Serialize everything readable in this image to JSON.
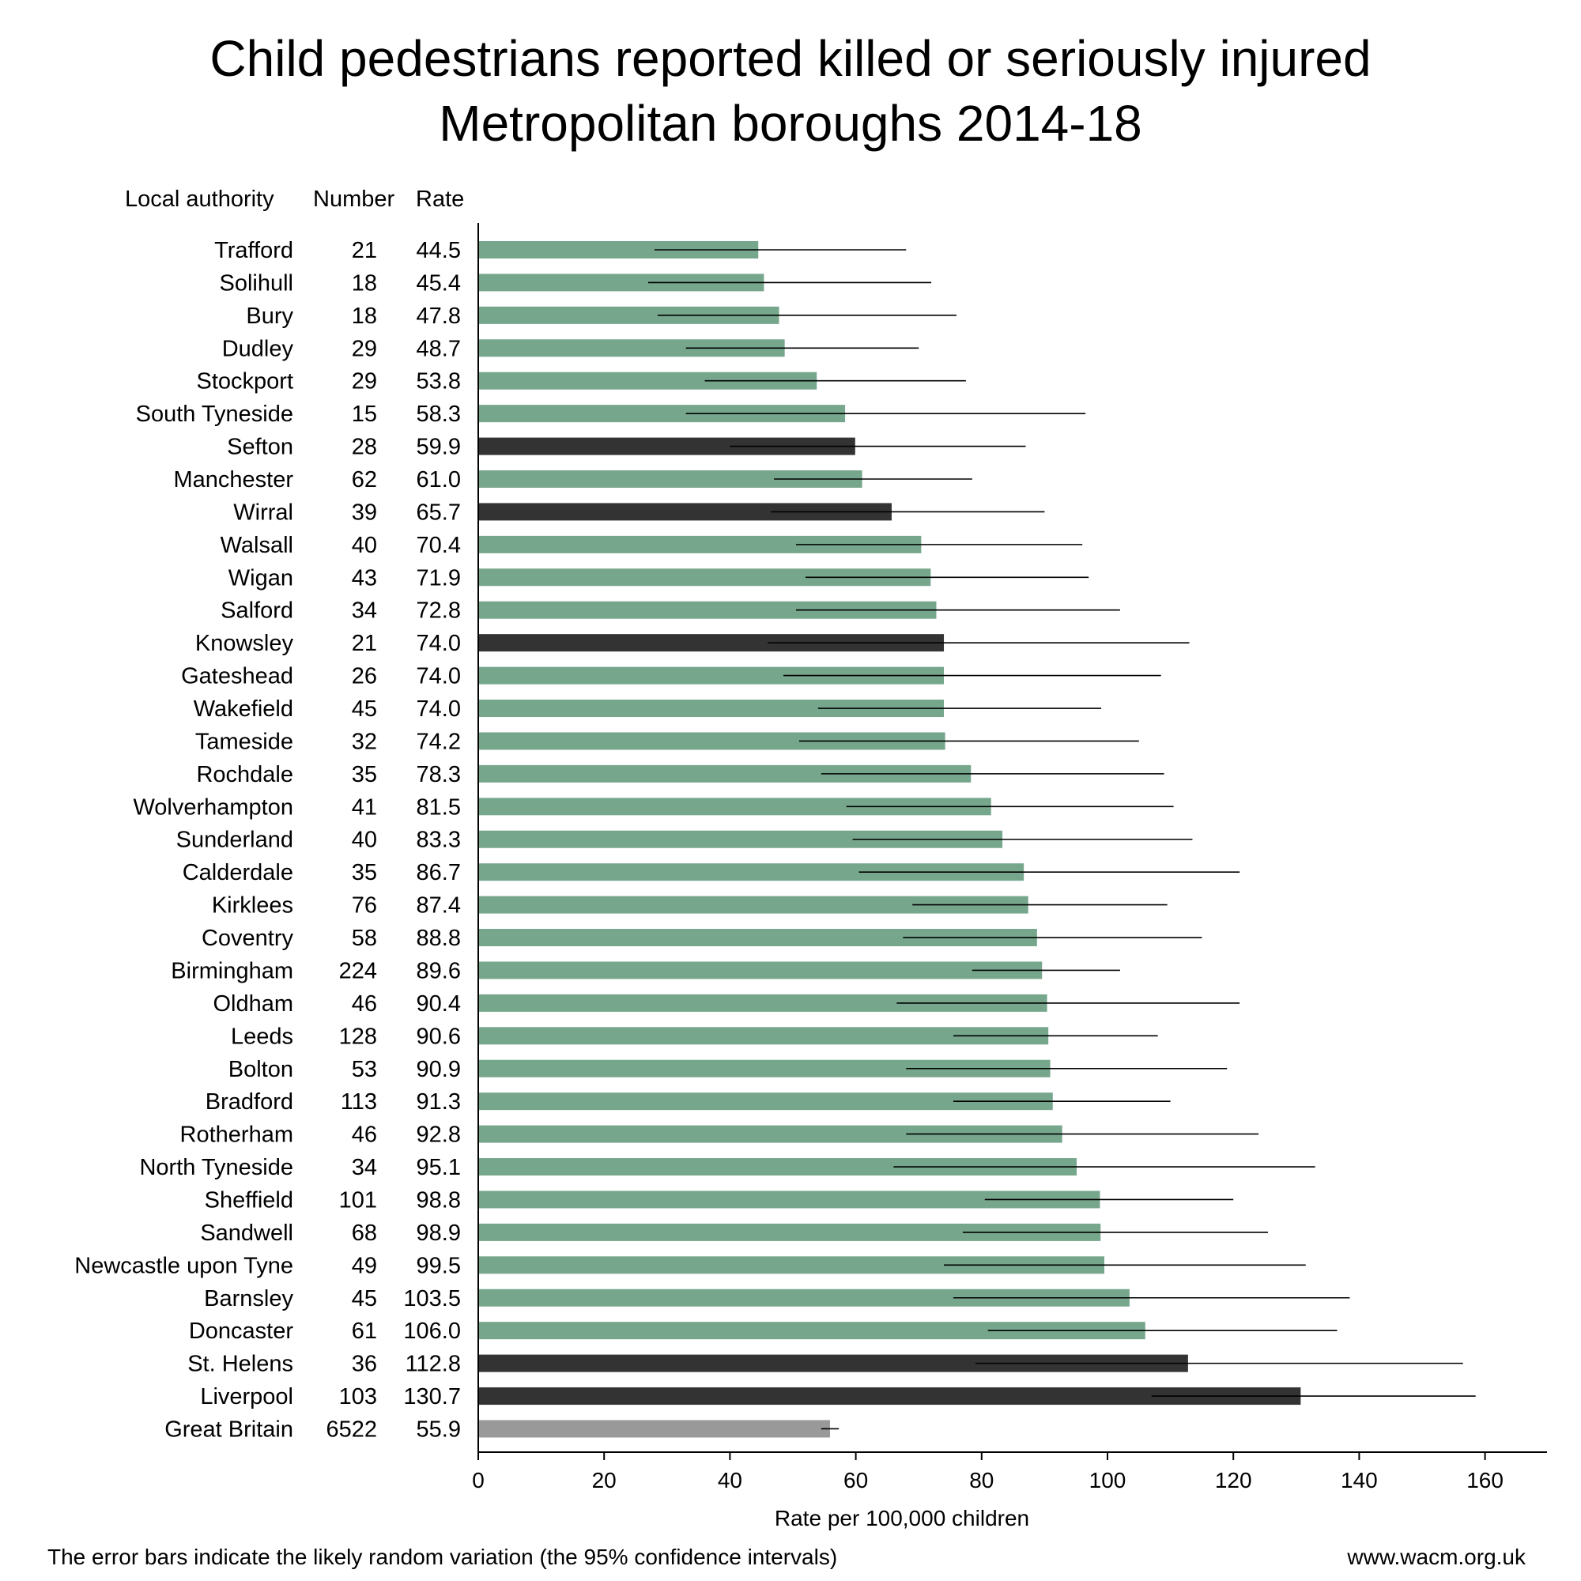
{
  "title": {
    "line1": "Child pedestrians reported killed or seriously injured",
    "line2": "Metropolitan boroughs 2014-18"
  },
  "columns": {
    "authority": "Local authority",
    "number": "Number",
    "rate": "Rate"
  },
  "footer": {
    "note": "The error bars indicate the likely random variation (the 95% confidence intervals)",
    "website": "www.wacm.org.uk"
  },
  "colors": {
    "metropolitan": "#76a68c",
    "merseyside": "#333333",
    "great_britain": "#999999"
  },
  "chart_data": {
    "type": "bar",
    "orientation": "horizontal",
    "xlabel": "Rate per 100,000 children",
    "xlim": [
      0,
      170
    ],
    "xticks": [
      0,
      20,
      40,
      60,
      80,
      100,
      120,
      140,
      160
    ],
    "error_bars": "95% confidence intervals",
    "rows": [
      {
        "name": "Trafford",
        "number": "21",
        "rate": "44.5",
        "value": 44.5,
        "ci": [
          28,
          68
        ],
        "group": "metropolitan"
      },
      {
        "name": "Solihull",
        "number": "18",
        "rate": "45.4",
        "value": 45.4,
        "ci": [
          27,
          72
        ],
        "group": "metropolitan"
      },
      {
        "name": "Bury",
        "number": "18",
        "rate": "47.8",
        "value": 47.8,
        "ci": [
          28.5,
          76
        ],
        "group": "metropolitan"
      },
      {
        "name": "Dudley",
        "number": "29",
        "rate": "48.7",
        "value": 48.7,
        "ci": [
          33,
          70
        ],
        "group": "metropolitan"
      },
      {
        "name": "Stockport",
        "number": "29",
        "rate": "53.8",
        "value": 53.8,
        "ci": [
          36,
          77.5
        ],
        "group": "metropolitan"
      },
      {
        "name": "South Tyneside",
        "number": "15",
        "rate": "58.3",
        "value": 58.3,
        "ci": [
          33,
          96.5
        ],
        "group": "metropolitan"
      },
      {
        "name": "Sefton",
        "number": "28",
        "rate": "59.9",
        "value": 59.9,
        "ci": [
          40,
          87
        ],
        "group": "merseyside"
      },
      {
        "name": "Manchester",
        "number": "62",
        "rate": "61.0",
        "value": 61.0,
        "ci": [
          47,
          78.5
        ],
        "group": "metropolitan"
      },
      {
        "name": "Wirral",
        "number": "39",
        "rate": "65.7",
        "value": 65.7,
        "ci": [
          46.5,
          90
        ],
        "group": "merseyside"
      },
      {
        "name": "Walsall",
        "number": "40",
        "rate": "70.4",
        "value": 70.4,
        "ci": [
          50.5,
          96
        ],
        "group": "metropolitan"
      },
      {
        "name": "Wigan",
        "number": "43",
        "rate": "71.9",
        "value": 71.9,
        "ci": [
          52,
          97
        ],
        "group": "metropolitan"
      },
      {
        "name": "Salford",
        "number": "34",
        "rate": "72.8",
        "value": 72.8,
        "ci": [
          50.5,
          102
        ],
        "group": "metropolitan"
      },
      {
        "name": "Knowsley",
        "number": "21",
        "rate": "74.0",
        "value": 74.0,
        "ci": [
          46,
          113
        ],
        "group": "merseyside"
      },
      {
        "name": "Gateshead",
        "number": "26",
        "rate": "74.0",
        "value": 74.0,
        "ci": [
          48.5,
          108.5
        ],
        "group": "metropolitan"
      },
      {
        "name": "Wakefield",
        "number": "45",
        "rate": "74.0",
        "value": 74.0,
        "ci": [
          54,
          99
        ],
        "group": "metropolitan"
      },
      {
        "name": "Tameside",
        "number": "32",
        "rate": "74.2",
        "value": 74.2,
        "ci": [
          51,
          105
        ],
        "group": "metropolitan"
      },
      {
        "name": "Rochdale",
        "number": "35",
        "rate": "78.3",
        "value": 78.3,
        "ci": [
          54.5,
          109
        ],
        "group": "metropolitan"
      },
      {
        "name": "Wolverhampton",
        "number": "41",
        "rate": "81.5",
        "value": 81.5,
        "ci": [
          58.5,
          110.5
        ],
        "group": "metropolitan"
      },
      {
        "name": "Sunderland",
        "number": "40",
        "rate": "83.3",
        "value": 83.3,
        "ci": [
          59.5,
          113.5
        ],
        "group": "metropolitan"
      },
      {
        "name": "Calderdale",
        "number": "35",
        "rate": "86.7",
        "value": 86.7,
        "ci": [
          60.5,
          121
        ],
        "group": "metropolitan"
      },
      {
        "name": "Kirklees",
        "number": "76",
        "rate": "87.4",
        "value": 87.4,
        "ci": [
          69,
          109.5
        ],
        "group": "metropolitan"
      },
      {
        "name": "Coventry",
        "number": "58",
        "rate": "88.8",
        "value": 88.8,
        "ci": [
          67.5,
          115
        ],
        "group": "metropolitan"
      },
      {
        "name": "Birmingham",
        "number": "224",
        "rate": "89.6",
        "value": 89.6,
        "ci": [
          78.5,
          102
        ],
        "group": "metropolitan"
      },
      {
        "name": "Oldham",
        "number": "46",
        "rate": "90.4",
        "value": 90.4,
        "ci": [
          66.5,
          121
        ],
        "group": "metropolitan"
      },
      {
        "name": "Leeds",
        "number": "128",
        "rate": "90.6",
        "value": 90.6,
        "ci": [
          75.5,
          108
        ],
        "group": "metropolitan"
      },
      {
        "name": "Bolton",
        "number": "53",
        "rate": "90.9",
        "value": 90.9,
        "ci": [
          68,
          119
        ],
        "group": "metropolitan"
      },
      {
        "name": "Bradford",
        "number": "113",
        "rate": "91.3",
        "value": 91.3,
        "ci": [
          75.5,
          110
        ],
        "group": "metropolitan"
      },
      {
        "name": "Rotherham",
        "number": "46",
        "rate": "92.8",
        "value": 92.8,
        "ci": [
          68,
          124
        ],
        "group": "metropolitan"
      },
      {
        "name": "North Tyneside",
        "number": "34",
        "rate": "95.1",
        "value": 95.1,
        "ci": [
          66,
          133
        ],
        "group": "metropolitan"
      },
      {
        "name": "Sheffield",
        "number": "101",
        "rate": "98.8",
        "value": 98.8,
        "ci": [
          80.5,
          120
        ],
        "group": "metropolitan"
      },
      {
        "name": "Sandwell",
        "number": "68",
        "rate": "98.9",
        "value": 98.9,
        "ci": [
          77,
          125.5
        ],
        "group": "metropolitan"
      },
      {
        "name": "Newcastle upon Tyne",
        "number": "49",
        "rate": "99.5",
        "value": 99.5,
        "ci": [
          74,
          131.5
        ],
        "group": "metropolitan"
      },
      {
        "name": "Barnsley",
        "number": "45",
        "rate": "103.5",
        "value": 103.5,
        "ci": [
          75.5,
          138.5
        ],
        "group": "metropolitan"
      },
      {
        "name": "Doncaster",
        "number": "61",
        "rate": "106.0",
        "value": 106.0,
        "ci": [
          81,
          136.5
        ],
        "group": "metropolitan"
      },
      {
        "name": "St. Helens",
        "number": "36",
        "rate": "112.8",
        "value": 112.8,
        "ci": [
          79,
          156.5
        ],
        "group": "merseyside"
      },
      {
        "name": "Liverpool",
        "number": "103",
        "rate": "130.7",
        "value": 130.7,
        "ci": [
          107,
          158.5
        ],
        "group": "merseyside"
      },
      {
        "name": "Great Britain",
        "number": "6522",
        "rate": "55.9",
        "value": 55.9,
        "ci": [
          54.5,
          57.3
        ],
        "group": "great_britain"
      }
    ]
  }
}
